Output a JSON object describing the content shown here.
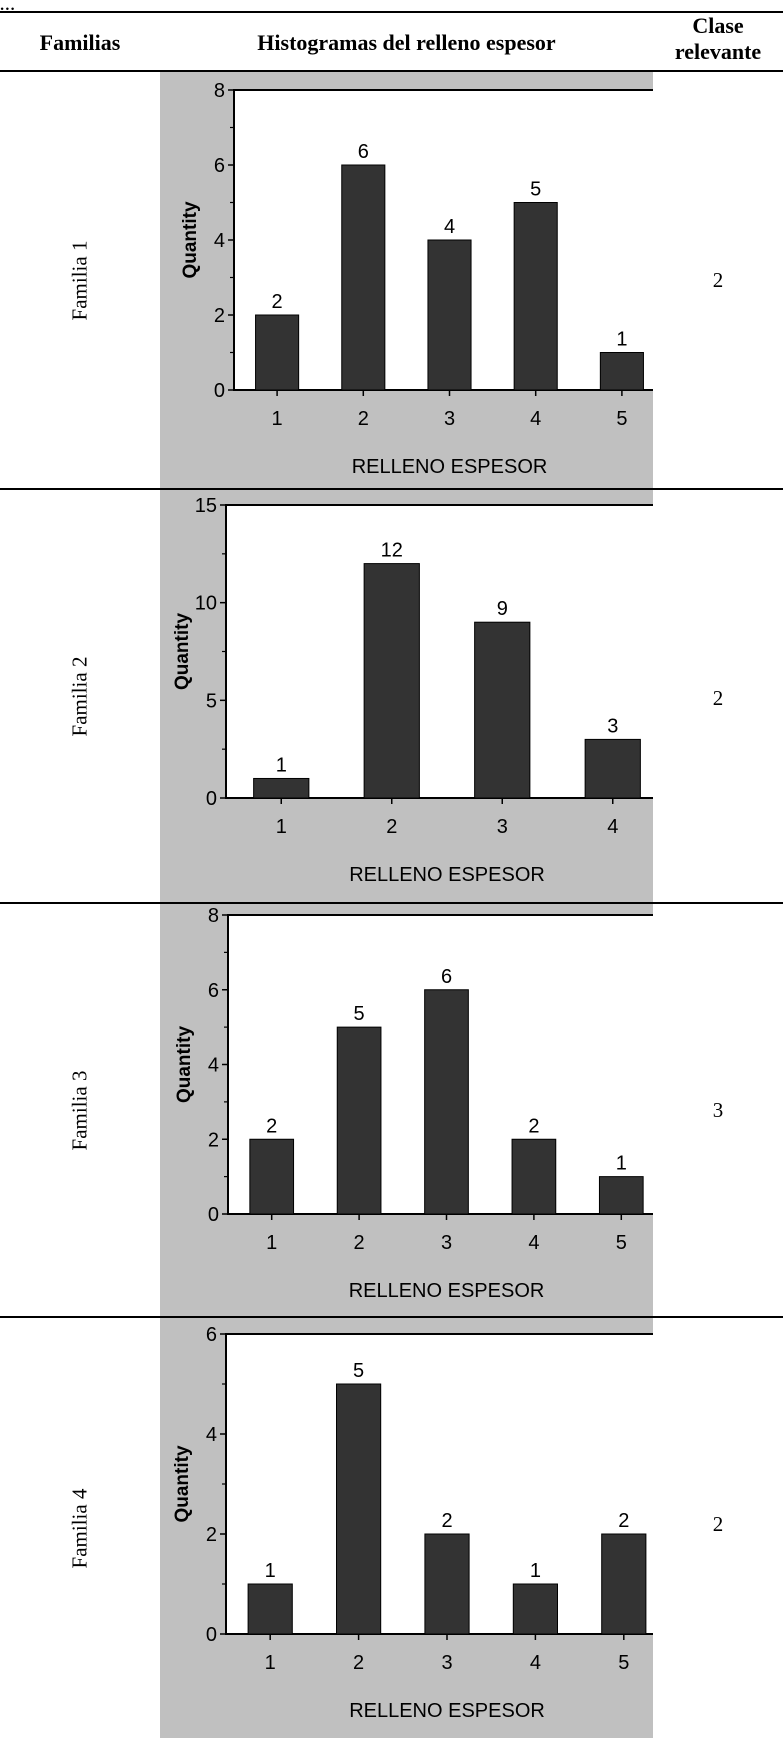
{
  "caption": "...",
  "headers": {
    "familias": "Familias",
    "histogramas": "Histogramas del relleno espesor",
    "clase_line1": "Clase",
    "clase_line2": "relevante"
  },
  "rows": [
    {
      "family": "Familia 1",
      "clase": "2"
    },
    {
      "family": "Familia 2",
      "clase": "2"
    },
    {
      "family": "Familia 3",
      "clase": "3"
    },
    {
      "family": "Familia 4",
      "clase": "2"
    }
  ],
  "chart_data": [
    {
      "type": "bar",
      "categories": [
        "1",
        "2",
        "3",
        "4",
        "5"
      ],
      "values": [
        2,
        6,
        4,
        5,
        1
      ],
      "data_labels": [
        "2",
        "6",
        "4",
        "5",
        "1"
      ],
      "title": "",
      "xlabel": "RELLENO ESPESOR",
      "ylabel": "Quantity",
      "ylim": [
        0,
        8
      ],
      "yticks": [
        0,
        2,
        4,
        6,
        8
      ],
      "grid": false,
      "bar_color": "#333333",
      "background_color": "#c0c0c0"
    },
    {
      "type": "bar",
      "categories": [
        "1",
        "2",
        "3",
        "4"
      ],
      "values": [
        1,
        12,
        9,
        3
      ],
      "data_labels": [
        "1",
        "12",
        "9",
        "3"
      ],
      "title": "",
      "xlabel": "RELLENO ESPESOR",
      "ylabel": "Quantity",
      "ylim": [
        0,
        15
      ],
      "yticks": [
        0,
        5,
        10,
        15
      ],
      "grid": false,
      "bar_color": "#333333",
      "background_color": "#c0c0c0"
    },
    {
      "type": "bar",
      "categories": [
        "1",
        "2",
        "3",
        "4",
        "5"
      ],
      "values": [
        2,
        5,
        6,
        2,
        1
      ],
      "data_labels": [
        "2",
        "5",
        "6",
        "2",
        "1"
      ],
      "title": "",
      "xlabel": "RELLENO ESPESOR",
      "ylabel": "Quantity",
      "ylim": [
        0,
        8
      ],
      "yticks": [
        0,
        2,
        4,
        6,
        8
      ],
      "grid": false,
      "bar_color": "#333333",
      "background_color": "#c0c0c0"
    },
    {
      "type": "bar",
      "categories": [
        "1",
        "2",
        "3",
        "4",
        "5"
      ],
      "values": [
        1,
        5,
        2,
        1,
        2
      ],
      "data_labels": [
        "1",
        "5",
        "2",
        "1",
        "2"
      ],
      "title": "",
      "xlabel": "RELLENO ESPESOR",
      "ylabel": "Quantity",
      "ylim": [
        0,
        6
      ],
      "yticks": [
        0,
        2,
        4,
        6
      ],
      "grid": false,
      "bar_color": "#333333",
      "background_color": "#c0c0c0"
    }
  ]
}
